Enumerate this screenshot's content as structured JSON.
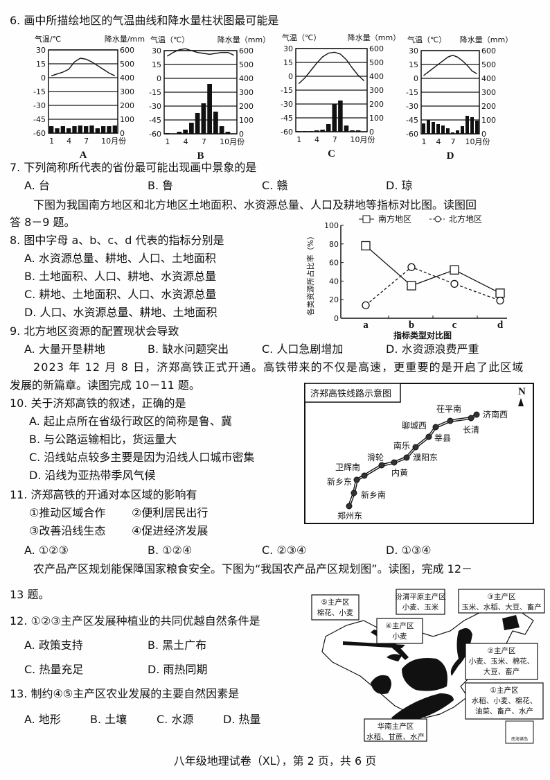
{
  "q6": {
    "stem": "6. 画中所描绘地区的气温曲线和降水量柱状图最可能是"
  },
  "climate_charts": [
    {
      "label": "A",
      "temp_title": "气温/℃",
      "precip_title": "降水量/mm",
      "temps": [
        2,
        4,
        6,
        9,
        17,
        21,
        20,
        17,
        13,
        9,
        5,
        2
      ],
      "precip": [
        50,
        35,
        50,
        35,
        50,
        55,
        50,
        55,
        35,
        50,
        50,
        55
      ]
    },
    {
      "label": "B",
      "temp_title": "气温（℃）",
      "precip_title": "降水量（mm）",
      "temps": [
        24,
        28,
        31,
        32,
        30,
        28,
        27,
        26,
        27,
        28,
        28,
        25
      ],
      "precip": [
        5,
        0,
        15,
        30,
        80,
        150,
        220,
        360,
        160,
        55,
        15,
        0
      ]
    },
    {
      "label": "C",
      "temp_title": "气温（℃）",
      "precip_title": "降水量（mm）",
      "temps": [
        -8,
        -2,
        6,
        14,
        21,
        25,
        26,
        24,
        18,
        9,
        1,
        -5
      ],
      "precip": [
        5,
        5,
        5,
        10,
        15,
        55,
        200,
        225,
        45,
        10,
        10,
        3
      ]
    },
    {
      "label": "D",
      "temp_title": "气温（℃）",
      "precip_title": "降水量（mm）",
      "temps": [
        3,
        7,
        11,
        15,
        19,
        23,
        25,
        23,
        19,
        14,
        8,
        5
      ],
      "precip": [
        75,
        100,
        85,
        70,
        60,
        40,
        10,
        25,
        55,
        130,
        120,
        95
      ]
    }
  ],
  "climate_axes": {
    "temp_ticks": [
      "30",
      "15",
      "0",
      "-15",
      "-30",
      "-45",
      "-60"
    ],
    "precip_ticks": [
      "600",
      "500",
      "400",
      "300",
      "200",
      "100",
      "0"
    ],
    "month_ticks": [
      "1",
      "4",
      "7",
      "10月份"
    ]
  },
  "q7": {
    "stem": "7. 下列简称所代表的省份最可能出现画中景象的是",
    "options": [
      "A. 台",
      "B. 鲁",
      "C. 赣",
      "D. 琼"
    ]
  },
  "intro_8_9": [
    "下图为我国南方地区和北方地区土地面积、水资源总量、人口及耕地等指标对比图。读图回",
    "答 8－9 题。"
  ],
  "q8": {
    "stem": "8. 图中字母 a、b、c、d 代表的指标分别是",
    "options": [
      "A. 水资源总量、耕地、人口、土地面积",
      "B. 土地面积、人口、耕地、水资源总量",
      "C. 耕地、土地面积、人口、水资源总量",
      "D. 人口、水资源总量、耕地、土地面积"
    ]
  },
  "chart_data": {
    "type": "line",
    "categories": [
      "a",
      "b",
      "c",
      "d"
    ],
    "series": [
      {
        "name": "南方地区",
        "values": [
          78,
          35,
          52,
          27
        ]
      },
      {
        "name": "北方地区",
        "values": [
          14,
          55,
          37,
          19
        ]
      }
    ],
    "title": "指标类型对比图",
    "xlabel": "指标类型对比图",
    "ylabel": "各类资源所占比率（%）",
    "ylim": [
      0,
      100
    ],
    "yticks": [
      "0",
      "20",
      "40",
      "60",
      "80",
      "100"
    ],
    "legend": "top"
  },
  "q9": {
    "stem": "9. 北方地区资源的配置现状会导致",
    "options": [
      "A. 大量开垦耕地",
      "B. 缺水问题突出",
      "C. 人口急剧增加",
      "D. 水资源浪费严重"
    ]
  },
  "passage_10_11": [
    "2023 年 12 月 8 日，济郑高铁正式开通。高铁带来的不仅是高速，更重要的是开启了此区域",
    "发展的新篇章。读图完成 10－11 题。"
  ],
  "rail_map": {
    "title": "济郑高铁线路示意图",
    "north": "N",
    "stations": [
      "济南西",
      "长清",
      "茌平南",
      "聊城西",
      "莘县",
      "南乐",
      "濮阳东",
      "内黄",
      "滑轮",
      "卫辉南",
      "新乡东",
      "新乡南",
      "郑州东"
    ]
  },
  "q10": {
    "stem": "10. 关于济郑高铁的叙述，正确的是",
    "options": [
      "A. 起止点所在省级行政区的简称是鲁、冀",
      "B. 与公路运输相比，货运量大",
      "C. 沿线站点较多主要是因为沿线人口城市密集",
      "D. 沿线为亚热带季风气候"
    ]
  },
  "q11": {
    "stem": "11. 济郑高铁的开通对本区域的影响有",
    "items": [
      "①推动区域合作",
      "②便利居民出行",
      "③改善沿线生态",
      "④促进经济发展"
    ],
    "options": [
      "A. ①②③",
      "B. ①②④",
      "C. ②③④",
      "D. ①③④"
    ]
  },
  "passage_12_13": [
    "农产品产区规划能保障国家粮食安全。下图为“我国农产品产区规划图”。读图，完成 12－",
    "13 题。"
  ],
  "china_map": {
    "boxes": [
      [
        "⑤主产区",
        "棉花、小麦"
      ],
      [
        "汾渭平原主产区",
        "小麦、玉米"
      ],
      [
        "④主产区",
        "小麦"
      ],
      [
        "③主产区",
        "玉米、水稻、大豆、畜产"
      ],
      [
        "②主产区",
        "小麦、玉米、棉花、",
        "大豆、畜产"
      ],
      [
        "①主产区",
        "水稻、小麦、棉花、",
        "油菜、畜产、水产"
      ],
      [
        "华南主产区",
        "水稻、甘蔗、水产"
      ]
    ],
    "inset": "南海诸岛"
  },
  "q12": {
    "stem": "12. ①②③主产区发展种植业的共同优越自然条件是",
    "options": [
      "A. 政策支持",
      "B. 黑土广布",
      "C. 热量充足",
      "D. 雨热同期"
    ]
  },
  "q13": {
    "stem": "13. 制约④⑤主产区农业发展的主要自然因素是",
    "options": [
      "A. 地形",
      "B. 土壤",
      "C. 水源",
      "D. 热量"
    ]
  },
  "footer": "八年级地理试卷（XL），第 2 页，共 6 页"
}
